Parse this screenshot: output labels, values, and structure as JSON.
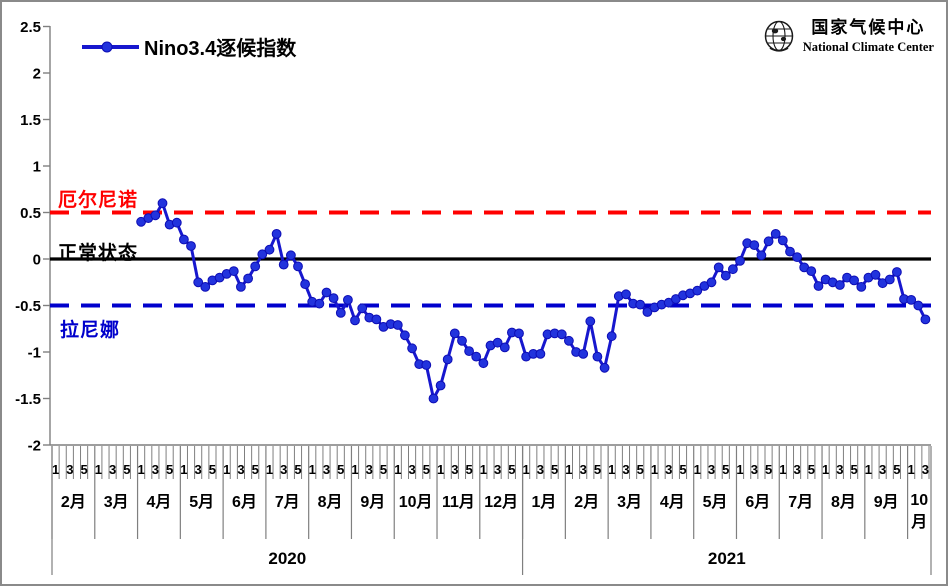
{
  "logo": {
    "cn": "国家气候中心",
    "en": "National Climate Center"
  },
  "chart_data": {
    "type": "line",
    "legend_position": "top-left",
    "ylim": [
      -2,
      2.5
    ],
    "yticks": [
      "2.5",
      "2",
      "1.5",
      "1",
      "0.5",
      "0",
      "-0.5",
      "-1",
      "-1.5",
      "-2"
    ],
    "pentad_labels": [
      "1",
      "3",
      "5"
    ],
    "pentad_label_slots": [
      0,
      2,
      4
    ],
    "year_labels": [
      "2020",
      "2021"
    ],
    "ref_lines": [
      {
        "id": "elnino",
        "label": "厄尔尼诺",
        "value": 0.5,
        "color": "#FF0000",
        "style": "dashed"
      },
      {
        "id": "normal",
        "label": "正常状态",
        "value": 0,
        "color": "#000000",
        "style": "solid"
      },
      {
        "id": "lanina",
        "label": "拉尼娜",
        "value": -0.5,
        "color": "#0000CC",
        "style": "dashed"
      }
    ],
    "series": [
      {
        "name": "Nino3.4逐候指数",
        "color": "#1717CE",
        "marker_fill": "#2233DD",
        "marker_stroke": "#0D0DB5"
      }
    ],
    "months": [
      {
        "year": "2020",
        "label": "2月",
        "values": []
      },
      {
        "year": "2020",
        "label": "3月",
        "values": []
      },
      {
        "year": "2020",
        "label": "4月",
        "values": [
          0.4,
          0.44,
          0.47,
          0.6,
          0.37,
          0.39
        ]
      },
      {
        "year": "2020",
        "label": "5月",
        "values": [
          0.21,
          0.14,
          -0.25,
          -0.3,
          -0.23,
          -0.2
        ]
      },
      {
        "year": "2020",
        "label": "6月",
        "values": [
          -0.16,
          -0.13,
          -0.3,
          -0.21,
          -0.08,
          0.05
        ]
      },
      {
        "year": "2020",
        "label": "7月",
        "values": [
          0.1,
          0.27,
          -0.06,
          0.04,
          -0.08,
          -0.27
        ]
      },
      {
        "year": "2020",
        "label": "8月",
        "values": [
          -0.46,
          -0.48,
          -0.36,
          -0.42,
          -0.58,
          -0.44
        ]
      },
      {
        "year": "2020",
        "label": "9月",
        "values": [
          -0.66,
          -0.53,
          -0.63,
          -0.65,
          -0.73,
          -0.7
        ]
      },
      {
        "year": "2020",
        "label": "10月",
        "values": [
          -0.71,
          -0.82,
          -0.96,
          -1.13,
          -1.14,
          -1.5
        ]
      },
      {
        "year": "2020",
        "label": "11月",
        "values": [
          -1.36,
          -1.08,
          -0.8,
          -0.88,
          -0.99,
          -1.05
        ]
      },
      {
        "year": "2020",
        "label": "12月",
        "values": [
          -1.12,
          -0.93,
          -0.9,
          -0.95,
          -0.79,
          -0.8
        ]
      },
      {
        "year": "2021",
        "label": "1月",
        "values": [
          -1.05,
          -1.02,
          -1.02,
          -0.81,
          -0.8,
          -0.81
        ]
      },
      {
        "year": "2021",
        "label": "2月",
        "values": [
          -0.88,
          -1.0,
          -1.02,
          -0.67,
          -1.05,
          -1.17
        ]
      },
      {
        "year": "2021",
        "label": "3月",
        "values": [
          -0.83,
          -0.4,
          -0.38,
          -0.48,
          -0.49,
          -0.57
        ]
      },
      {
        "year": "2021",
        "label": "4月",
        "values": [
          -0.52,
          -0.49,
          -0.47,
          -0.43,
          -0.39,
          -0.37
        ]
      },
      {
        "year": "2021",
        "label": "5月",
        "values": [
          -0.34,
          -0.29,
          -0.25,
          -0.09,
          -0.18,
          -0.11
        ]
      },
      {
        "year": "2021",
        "label": "6月",
        "values": [
          -0.02,
          0.17,
          0.15,
          0.04,
          0.19,
          0.27
        ]
      },
      {
        "year": "2021",
        "label": "7月",
        "values": [
          0.2,
          0.08,
          0.02,
          -0.09,
          -0.13,
          -0.29
        ]
      },
      {
        "year": "2021",
        "label": "8月",
        "values": [
          -0.22,
          -0.25,
          -0.28,
          -0.2,
          -0.23,
          -0.3
        ]
      },
      {
        "year": "2021",
        "label": "9月",
        "values": [
          -0.2,
          -0.17,
          -0.26,
          -0.22,
          -0.14,
          -0.43
        ]
      },
      {
        "year": "2021",
        "label": "10月",
        "values": [
          -0.44,
          -0.5,
          -0.65
        ]
      }
    ]
  }
}
